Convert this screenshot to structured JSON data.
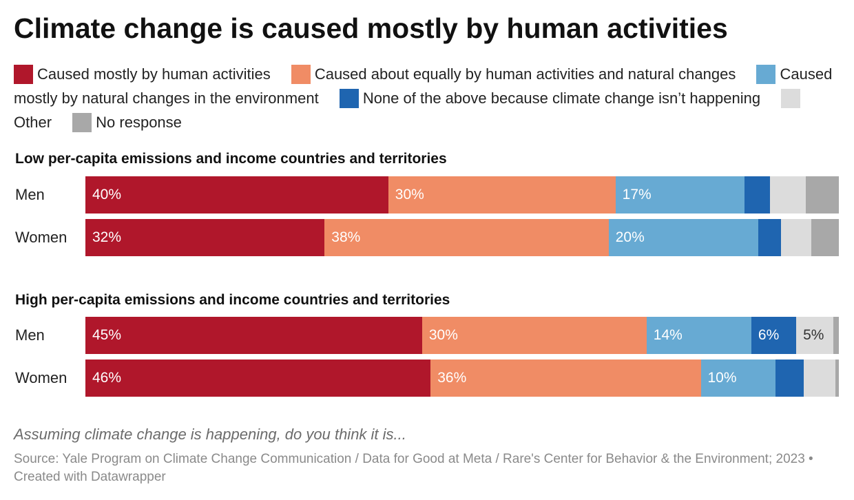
{
  "title": "Climate change is caused mostly by human activities",
  "legend": [
    {
      "label": "Caused mostly by human activities",
      "color": "#b0172b"
    },
    {
      "label": "Caused about equally by human activities and natural changes",
      "color": "#f08c65"
    },
    {
      "label": "Caused mostly by natural changes in the environment",
      "color": "#67aad3"
    },
    {
      "label": "None of the above because climate change isn’t happening",
      "color": "#1f65b0"
    },
    {
      "label": "Other",
      "color": "#dcdcdc"
    },
    {
      "label": "No response",
      "color": "#a8a8a8"
    }
  ],
  "chart_data": {
    "type": "bar",
    "orientation": "horizontal",
    "stacked": true,
    "normalized_to": 100,
    "series_names": [
      "Caused mostly by human activities",
      "Caused about equally by human activities and natural changes",
      "Caused mostly by natural changes in the environment",
      "None of the above because climate change isn’t happening",
      "Other",
      "No response"
    ],
    "groups": [
      {
        "title": "Low per-capita emissions and income countries and territories",
        "rows": [
          {
            "label": "Men",
            "values": [
              40,
              30,
              17,
              3.4,
              4.7,
              4.4
            ],
            "labels": [
              "40%",
              "30%",
              "17%",
              "",
              "",
              ""
            ]
          },
          {
            "label": "Women",
            "values": [
              32,
              38,
              20,
              3.1,
              4.0,
              3.7
            ],
            "labels": [
              "32%",
              "38%",
              "20%",
              "",
              "",
              ""
            ]
          }
        ]
      },
      {
        "title": "High per-capita emissions and income countries and territories",
        "rows": [
          {
            "label": "Men",
            "values": [
              45,
              30,
              14,
              6,
              5,
              0.7
            ],
            "labels": [
              "45%",
              "30%",
              "14%",
              "6%",
              "5%",
              ""
            ]
          },
          {
            "label": "Women",
            "values": [
              46,
              36,
              10,
              3.7,
              4.2,
              0.5
            ],
            "labels": [
              "46%",
              "36%",
              "10%",
              "",
              "",
              ""
            ]
          }
        ]
      }
    ]
  },
  "question": "Assuming climate change is happening, do you think it is...",
  "source": "Source: Yale Program on Climate Change Communication / Data for Good at Meta / Rare's Center for Behavior & the Environment; 2023 • Created with Datawrapper"
}
